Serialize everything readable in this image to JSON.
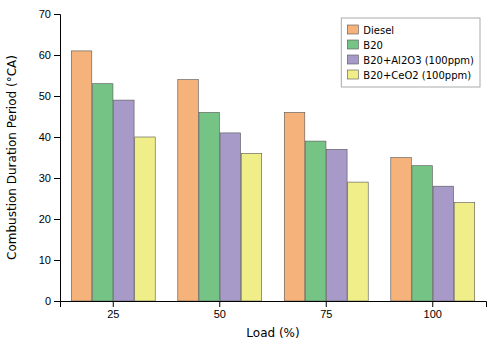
{
  "chart_data": {
    "type": "bar",
    "xlabel": "Load (%)",
    "ylabel": "Combustion Duration Period (°CA)",
    "categories": [
      "25",
      "50",
      "75",
      "100"
    ],
    "series": [
      {
        "name": "Diesel",
        "color": "#F5B27A",
        "values": [
          61,
          54,
          46,
          35
        ]
      },
      {
        "name": "B20",
        "color": "#75C485",
        "values": [
          53,
          46,
          39,
          33
        ]
      },
      {
        "name": "B20+Al2O3 (100ppm)",
        "color": "#A89AC8",
        "values": [
          49,
          41,
          37,
          28
        ]
      },
      {
        "name": "B20+CeO2 (100ppm)",
        "color": "#F0EE88",
        "values": [
          40,
          36,
          29,
          24
        ]
      }
    ],
    "ylim": [
      0,
      70
    ],
    "yticks": [
      0,
      10,
      20,
      30,
      40,
      50,
      60,
      70
    ],
    "grid": false,
    "legend": "upper right"
  }
}
